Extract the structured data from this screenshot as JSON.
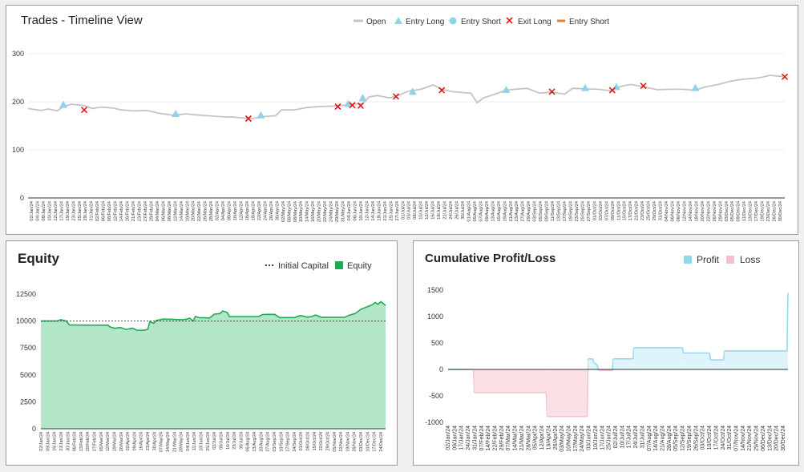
{
  "colors": {
    "open": "#c4c4c4",
    "entry_long": "#8fd3ea",
    "entry_short": "#8fd3ea",
    "exit_long": "#e01818",
    "entry_short_line": "#f07a2c",
    "equity_line": "#1eab54",
    "equity_fill": "#b3e6c7",
    "initial_capital": "#444444",
    "profit": "#8fd6ee",
    "profit_fill": "#dff3fb",
    "loss": "#f5c2cc",
    "loss_fill": "#fbe1e6"
  },
  "chart_data": [
    {
      "type": "line",
      "title": "Trades - Timeline View",
      "legend": [
        "Open",
        "Entry Long",
        "Entry Short",
        "Exit Long",
        "Entry Short"
      ],
      "legend_position": "top",
      "grid": true,
      "ylim": [
        0,
        300
      ],
      "yticks": [
        "300",
        "200",
        "100",
        "0"
      ],
      "x_range": [
        "2024-01-02",
        "2024-12-31"
      ],
      "x_tick_labels": [
        "02/Jan/24",
        "04/Jan/24",
        "08/Jan/24",
        "10/Jan/24",
        "12/Jan/24",
        "17/Jan/24",
        "19/Jan/24",
        "23/Jan/24",
        "25/Jan/24",
        "29/Jan/24",
        "31/Jan/24",
        "02/Feb/24",
        "06/Feb/24",
        "08/Feb/24",
        "12/Feb/24",
        "14/Feb/24",
        "16/Feb/24",
        "21/Feb/24",
        "23/Feb/24",
        "27/Feb/24",
        "29/Feb/24",
        "04/Mar/24",
        "06/Mar/24",
        "08/Mar/24",
        "12/Mar/24",
        "14/Mar/24",
        "18/Mar/24",
        "20/Mar/24",
        "22/Mar/24",
        "26/Mar/24",
        "28/Mar/24",
        "02/Apr/24",
        "04/Apr/24",
        "08/Apr/24",
        "10/Apr/24",
        "12/Apr/24",
        "16/Apr/24",
        "18/Apr/24",
        "22/Apr/24",
        "24/Apr/24",
        "26/Apr/24",
        "30/Apr/24",
        "02/May/24",
        "06/May/24",
        "08/May/24",
        "10/May/24",
        "14/May/24",
        "16/May/24",
        "20/May/24",
        "22/May/24",
        "24/May/24",
        "29/May/24",
        "31/May/24",
        "04/Jun/24",
        "06/Jun/24",
        "10/Jun/24",
        "12/Jun/24",
        "14/Jun/24",
        "18/Jun/24",
        "21/Jun/24",
        "25/Jun/24",
        "27/Jun/24",
        "01/Jul/24",
        "03/Jul/24",
        "08/Jul/24",
        "10/Jul/24",
        "12/Jul/24",
        "16/Jul/24",
        "18/Jul/24",
        "22/Jul/24",
        "24/Jul/24",
        "26/Jul/24",
        "30/Jul/24",
        "01/Aug/24",
        "05/Aug/24",
        "07/Aug/24",
        "09/Aug/24",
        "13/Aug/24",
        "15/Aug/24",
        "19/Aug/24",
        "21/Aug/24",
        "23/Aug/24",
        "27/Aug/24",
        "29/Aug/24",
        "03/Sep/24",
        "05/Sep/24",
        "09/Sep/24",
        "11/Sep/24",
        "13/Sep/24",
        "17/Sep/24",
        "19/Sep/24",
        "23/Sep/24",
        "25/Sep/24",
        "27/Sep/24",
        "01/Oct/24",
        "03/Oct/24",
        "07/Oct/24",
        "09/Oct/24",
        "11/Oct/24",
        "15/Oct/24",
        "17/Oct/24",
        "21/Oct/24",
        "23/Oct/24",
        "25/Oct/24",
        "29/Oct/24",
        "31/Oct/24",
        "04/Nov/24",
        "06/Nov/24",
        "08/Nov/24",
        "12/Nov/24",
        "14/Nov/24",
        "18/Nov/24",
        "20/Nov/24",
        "22/Nov/24",
        "26/Nov/24",
        "29/Nov/24",
        "03/Dec/24",
        "05/Dec/24",
        "09/Dec/24",
        "11/Dec/24",
        "13/Dec/24",
        "17/Dec/24",
        "19/Dec/24",
        "23/Dec/24",
        "26/Dec/24",
        "30/Dec/24"
      ],
      "open_series": [
        [
          "2024-01-02",
          186
        ],
        [
          "2024-01-08",
          182
        ],
        [
          "2024-01-12",
          185
        ],
        [
          "2024-01-16",
          181
        ],
        [
          "2024-01-19",
          190
        ],
        [
          "2024-01-23",
          195
        ],
        [
          "2024-01-29",
          192
        ],
        [
          "2024-02-02",
          186
        ],
        [
          "2024-02-06",
          189
        ],
        [
          "2024-02-12",
          187
        ],
        [
          "2024-02-16",
          183
        ],
        [
          "2024-02-22",
          181
        ],
        [
          "2024-02-28",
          182
        ],
        [
          "2024-03-05",
          176
        ],
        [
          "2024-03-12",
          172
        ],
        [
          "2024-03-18",
          175
        ],
        [
          "2024-03-22",
          173
        ],
        [
          "2024-03-28",
          171
        ],
        [
          "2024-04-04",
          169
        ],
        [
          "2024-04-10",
          168
        ],
        [
          "2024-04-15",
          166
        ],
        [
          "2024-04-19",
          165
        ],
        [
          "2024-04-24",
          169
        ],
        [
          "2024-04-30",
          171
        ],
        [
          "2024-05-03",
          183
        ],
        [
          "2024-05-09",
          183
        ],
        [
          "2024-05-15",
          188
        ],
        [
          "2024-05-21",
          190
        ],
        [
          "2024-05-28",
          191
        ],
        [
          "2024-06-03",
          193
        ],
        [
          "2024-06-07",
          195
        ],
        [
          "2024-06-11",
          196
        ],
        [
          "2024-06-14",
          210
        ],
        [
          "2024-06-18",
          213
        ],
        [
          "2024-06-24",
          208
        ],
        [
          "2024-06-28",
          213
        ],
        [
          "2024-07-03",
          222
        ],
        [
          "2024-07-09",
          226
        ],
        [
          "2024-07-15",
          235
        ],
        [
          "2024-07-19",
          226
        ],
        [
          "2024-07-24",
          221
        ],
        [
          "2024-07-30",
          219
        ],
        [
          "2024-08-02",
          218
        ],
        [
          "2024-08-05",
          198
        ],
        [
          "2024-08-08",
          208
        ],
        [
          "2024-08-13",
          215
        ],
        [
          "2024-08-19",
          224
        ],
        [
          "2024-08-23",
          226
        ],
        [
          "2024-08-29",
          228
        ],
        [
          "2024-09-04",
          218
        ],
        [
          "2024-09-10",
          220
        ],
        [
          "2024-09-16",
          216
        ],
        [
          "2024-09-20",
          228
        ],
        [
          "2024-09-26",
          227
        ],
        [
          "2024-10-02",
          226
        ],
        [
          "2024-10-08",
          223
        ],
        [
          "2024-10-14",
          233
        ],
        [
          "2024-10-18",
          236
        ],
        [
          "2024-10-24",
          231
        ],
        [
          "2024-10-31",
          225
        ],
        [
          "2024-11-06",
          226
        ],
        [
          "2024-11-12",
          226
        ],
        [
          "2024-11-18",
          224
        ],
        [
          "2024-11-22",
          230
        ],
        [
          "2024-11-29",
          236
        ],
        [
          "2024-12-05",
          243
        ],
        [
          "2024-12-11",
          247
        ],
        [
          "2024-12-17",
          249
        ],
        [
          "2024-12-20",
          251
        ],
        [
          "2024-12-24",
          255
        ],
        [
          "2024-12-31",
          252
        ]
      ],
      "entry_long": [
        [
          "2024-01-19",
          194
        ],
        [
          "2024-03-13",
          175
        ],
        [
          "2024-04-23",
          172
        ],
        [
          "2024-06-04",
          196
        ],
        [
          "2024-06-11",
          208
        ],
        [
          "2024-07-05",
          221
        ],
        [
          "2024-08-19",
          225
        ],
        [
          "2024-09-26",
          229
        ],
        [
          "2024-10-11",
          231
        ],
        [
          "2024-11-18",
          229
        ]
      ],
      "entry_short": [],
      "exit_long": [
        [
          "2024-01-29",
          183
        ],
        [
          "2024-04-17",
          165
        ],
        [
          "2024-05-30",
          190
        ],
        [
          "2024-06-06",
          193
        ],
        [
          "2024-06-10",
          192
        ],
        [
          "2024-06-27",
          211
        ],
        [
          "2024-07-19",
          224
        ],
        [
          "2024-09-10",
          221
        ],
        [
          "2024-10-09",
          224
        ],
        [
          "2024-10-24",
          233
        ],
        [
          "2024-12-31",
          252
        ]
      ]
    },
    {
      "type": "area",
      "title": "Equity",
      "legend": [
        "Initial Capital",
        "Equity"
      ],
      "legend_position": "top-right",
      "grid": false,
      "ylim": [
        0,
        12500
      ],
      "yticks": [
        "12500",
        "10000",
        "7500",
        "5000",
        "2500",
        "0"
      ],
      "initial_capital": 10000,
      "x_tick_labels": [
        "02/Jan/24",
        "09/Jan/24",
        "16/Jan/24",
        "23/Jan/24",
        "30/Jan/24",
        "06/Feb/24",
        "13/Feb/24",
        "20/Feb/24",
        "27/Feb/24",
        "05/Mar/24",
        "12/Mar/24",
        "19/Mar/24",
        "26/Mar/24",
        "02/Apr/24",
        "09/Apr/24",
        "16/Apr/24",
        "23/Apr/24",
        "30/Apr/24",
        "07/May/24",
        "14/May/24",
        "21/May/24",
        "28/May/24",
        "04/Jun/24",
        "11/Jun/24",
        "18/Jun/24",
        "25/Jun/24",
        "02/Jul/24",
        "09/Jul/24",
        "16/Jul/24",
        "23/Jul/24",
        "30/Jul/24",
        "06/Aug/24",
        "13/Aug/24",
        "20/Aug/24",
        "27/Aug/24",
        "03/Sep/24",
        "10/Sep/24",
        "17/Sep/24",
        "24/Sep/24",
        "01/Oct/24",
        "08/Oct/24",
        "15/Oct/24",
        "22/Oct/24",
        "29/Oct/24",
        "05/Nov/24",
        "12/Nov/24",
        "19/Nov/24",
        "26/Nov/24",
        "03/Dec/24",
        "10/Dec/24",
        "17/Dec/24",
        "24/Dec/24"
      ],
      "equity_series": [
        [
          "2024-01-02",
          10000
        ],
        [
          "2024-01-19",
          10000
        ],
        [
          "2024-01-23",
          10130
        ],
        [
          "2024-01-29",
          9990
        ],
        [
          "2024-02-01",
          9640
        ],
        [
          "2024-02-15",
          9620
        ],
        [
          "2024-03-13",
          9610
        ],
        [
          "2024-03-15",
          9460
        ],
        [
          "2024-03-20",
          9330
        ],
        [
          "2024-03-26",
          9400
        ],
        [
          "2024-04-01",
          9220
        ],
        [
          "2024-04-08",
          9340
        ],
        [
          "2024-04-12",
          9150
        ],
        [
          "2024-04-17",
          9130
        ],
        [
          "2024-04-22",
          9180
        ],
        [
          "2024-04-24",
          9250
        ],
        [
          "2024-04-26",
          9940
        ],
        [
          "2024-04-30",
          9790
        ],
        [
          "2024-05-03",
          10050
        ],
        [
          "2024-05-10",
          10180
        ],
        [
          "2024-05-20",
          10160
        ],
        [
          "2024-05-30",
          10120
        ],
        [
          "2024-06-04",
          10180
        ],
        [
          "2024-06-07",
          10260
        ],
        [
          "2024-06-11",
          10000
        ],
        [
          "2024-06-13",
          10420
        ],
        [
          "2024-06-18",
          10300
        ],
        [
          "2024-06-25",
          10300
        ],
        [
          "2024-06-28",
          10270
        ],
        [
          "2024-07-03",
          10640
        ],
        [
          "2024-07-09",
          10690
        ],
        [
          "2024-07-12",
          10940
        ],
        [
          "2024-07-17",
          10780
        ],
        [
          "2024-07-19",
          10420
        ],
        [
          "2024-08-10",
          10420
        ],
        [
          "2024-08-19",
          10420
        ],
        [
          "2024-08-23",
          10600
        ],
        [
          "2024-08-29",
          10620
        ],
        [
          "2024-09-05",
          10620
        ],
        [
          "2024-09-10",
          10320
        ],
        [
          "2024-09-26",
          10320
        ],
        [
          "2024-10-01",
          10480
        ],
        [
          "2024-10-04",
          10490
        ],
        [
          "2024-10-09",
          10360
        ],
        [
          "2024-10-14",
          10420
        ],
        [
          "2024-10-18",
          10560
        ],
        [
          "2024-10-24",
          10350
        ],
        [
          "2024-11-15",
          10350
        ],
        [
          "2024-11-18",
          10340
        ],
        [
          "2024-11-22",
          10520
        ],
        [
          "2024-11-29",
          10700
        ],
        [
          "2024-12-05",
          11100
        ],
        [
          "2024-12-11",
          11300
        ],
        [
          "2024-12-17",
          11520
        ],
        [
          "2024-12-20",
          11720
        ],
        [
          "2024-12-23",
          11560
        ],
        [
          "2024-12-26",
          11800
        ],
        [
          "2024-12-31",
          11450
        ]
      ]
    },
    {
      "type": "area",
      "title": "Cumulative Profit/Loss",
      "legend": [
        "Profit",
        "Loss"
      ],
      "legend_position": "top-right",
      "grid": false,
      "ylim": [
        -1000,
        1500
      ],
      "yticks": [
        "1500",
        "1000",
        "500",
        "0",
        "-500",
        "-1000"
      ],
      "x_tick_labels": [
        "02/Jan/24",
        "09/Jan/24",
        "17/Jan/24",
        "24/Jan/24",
        "31/Jan/24",
        "07/Feb/24",
        "14/Feb/24",
        "22/Feb/24",
        "29/Feb/24",
        "07/Mar/24",
        "14/Mar/24",
        "21/Mar/24",
        "28/Mar/24",
        "05/Apr/24",
        "12/Apr/24",
        "19/Apr/24",
        "26/Apr/24",
        "03/May/24",
        "10/May/24",
        "17/May/24",
        "24/May/24",
        "03/Jun/24",
        "10/Jun/24",
        "17/Jun/24",
        "25/Jun/24",
        "02/Jul/24",
        "10/Jul/24",
        "17/Jul/24",
        "24/Jul/24",
        "31/Jul/24",
        "07/Aug/24",
        "14/Aug/24",
        "21/Aug/24",
        "28/Aug/24",
        "05/Sep/24",
        "12/Sep/24",
        "19/Sep/24",
        "26/Sep/24",
        "03/Oct/24",
        "10/Oct/24",
        "17/Oct/24",
        "24/Oct/24",
        "31/Oct/24",
        "07/Nov/24",
        "14/Nov/24",
        "21/Nov/24",
        "29/Nov/24",
        "06/Dec/24",
        "13/Dec/24",
        "20/Dec/24",
        "30/Dec/24"
      ],
      "pnl_series": [
        [
          "2024-01-02",
          0
        ],
        [
          "2024-01-29",
          0
        ],
        [
          "2024-01-30",
          -440
        ],
        [
          "2024-04-16",
          -440
        ],
        [
          "2024-04-17",
          -890
        ],
        [
          "2024-05-30",
          -890
        ],
        [
          "2024-05-31",
          200
        ],
        [
          "2024-06-05",
          200
        ],
        [
          "2024-06-06",
          130
        ],
        [
          "2024-06-10",
          80
        ],
        [
          "2024-06-11",
          -20
        ],
        [
          "2024-06-26",
          -20
        ],
        [
          "2024-06-27",
          200
        ],
        [
          "2024-07-18",
          200
        ],
        [
          "2024-07-19",
          410
        ],
        [
          "2024-09-09",
          410
        ],
        [
          "2024-09-10",
          310
        ],
        [
          "2024-10-08",
          310
        ],
        [
          "2024-10-09",
          180
        ],
        [
          "2024-10-23",
          180
        ],
        [
          "2024-10-24",
          350
        ],
        [
          "2024-12-30",
          350
        ],
        [
          "2024-12-31",
          1450
        ]
      ]
    }
  ]
}
